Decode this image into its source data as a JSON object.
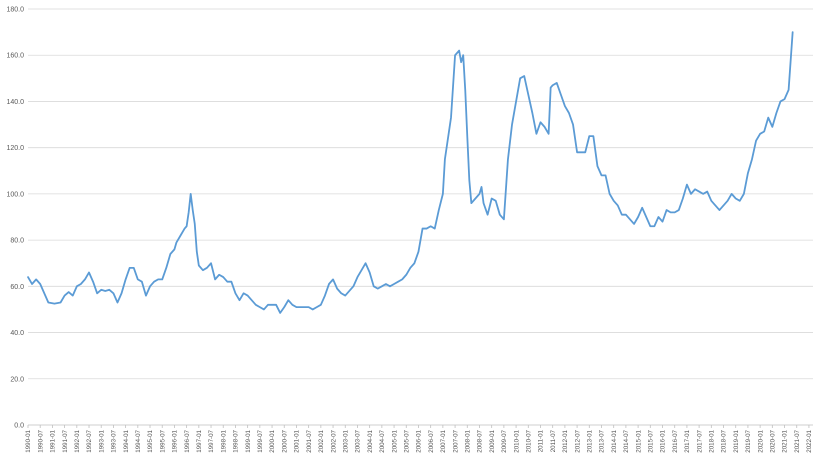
{
  "chart_data": {
    "type": "line",
    "title": "",
    "xlabel": "",
    "ylabel": "",
    "ylim": [
      0,
      180
    ],
    "ytick_step": 20,
    "ytick_labels": [
      "0.0",
      "20.0",
      "40.0",
      "60.0",
      "80.0",
      "100.0",
      "120.0",
      "140.0",
      "160.0",
      "180.0"
    ],
    "grid": true,
    "legend": "none",
    "line_color": "#5b9bd5",
    "x_start": "1990-01",
    "x_end": "2022-03",
    "xtick_labels": [
      "1990-01",
      "1990-07",
      "1991-01",
      "1991-07",
      "1992-01",
      "1992-07",
      "1993-01",
      "1993-07",
      "1994-01",
      "1994-07",
      "1995-01",
      "1995-07",
      "1996-01",
      "1996-07",
      "1997-01",
      "1997-07",
      "1998-01",
      "1998-07",
      "1999-01",
      "1999-07",
      "2000-01",
      "2000-07",
      "2001-01",
      "2001-07",
      "2002-01",
      "2002-07",
      "2003-01",
      "2003-07",
      "2004-01",
      "2004-07",
      "2005-01",
      "2005-07",
      "2006-01",
      "2006-07",
      "2007-01",
      "2007-07",
      "2008-01",
      "2008-07",
      "2009-01",
      "2009-07",
      "2010-01",
      "2010-07",
      "2011-01",
      "2011-07",
      "2012-01",
      "2012-07",
      "2013-01",
      "2013-07",
      "2014-01",
      "2014-07",
      "2015-01",
      "2015-07",
      "2016-01",
      "2016-07",
      "2017-01",
      "2017-07",
      "2018-01",
      "2018-07",
      "2019-01",
      "2019-07",
      "2020-01",
      "2020-07",
      "2021-01",
      "2021-07",
      "2022-01"
    ],
    "series": [
      {
        "points": [
          [
            "1990-01",
            64
          ],
          [
            "1990-03",
            61
          ],
          [
            "1990-05",
            63
          ],
          [
            "1990-07",
            61
          ],
          [
            "1990-09",
            57
          ],
          [
            "1990-11",
            53
          ],
          [
            "1991-02",
            52.5
          ],
          [
            "1991-05",
            53
          ],
          [
            "1991-07",
            56
          ],
          [
            "1991-09",
            57.5
          ],
          [
            "1991-11",
            56
          ],
          [
            "1992-01",
            60
          ],
          [
            "1992-03",
            61
          ],
          [
            "1992-05",
            63
          ],
          [
            "1992-07",
            66
          ],
          [
            "1992-09",
            62
          ],
          [
            "1992-11",
            57
          ],
          [
            "1993-01",
            58.5
          ],
          [
            "1993-03",
            58
          ],
          [
            "1993-05",
            58.5
          ],
          [
            "1993-07",
            57
          ],
          [
            "1993-09",
            53
          ],
          [
            "1993-11",
            57
          ],
          [
            "1994-01",
            63
          ],
          [
            "1994-03",
            68
          ],
          [
            "1994-05",
            68
          ],
          [
            "1994-07",
            63
          ],
          [
            "1994-09",
            62
          ],
          [
            "1994-11",
            56
          ],
          [
            "1995-01",
            60
          ],
          [
            "1995-03",
            62
          ],
          [
            "1995-05",
            63
          ],
          [
            "1995-07",
            63
          ],
          [
            "1995-09",
            68
          ],
          [
            "1995-11",
            74
          ],
          [
            "1996-01",
            76
          ],
          [
            "1996-02",
            79
          ],
          [
            "1996-04",
            82
          ],
          [
            "1996-06",
            85
          ],
          [
            "1996-07",
            86
          ],
          [
            "1996-08",
            92
          ],
          [
            "1996-09",
            100
          ],
          [
            "1996-10",
            93
          ],
          [
            "1996-11",
            87
          ],
          [
            "1996-12",
            75
          ],
          [
            "1997-01",
            69
          ],
          [
            "1997-03",
            67
          ],
          [
            "1997-05",
            68
          ],
          [
            "1997-07",
            70
          ],
          [
            "1997-09",
            63
          ],
          [
            "1997-11",
            65
          ],
          [
            "1998-01",
            64
          ],
          [
            "1998-03",
            62
          ],
          [
            "1998-05",
            62
          ],
          [
            "1998-07",
            57
          ],
          [
            "1998-09",
            54
          ],
          [
            "1998-11",
            57
          ],
          [
            "1999-01",
            56
          ],
          [
            "1999-03",
            54
          ],
          [
            "1999-05",
            52
          ],
          [
            "1999-07",
            51
          ],
          [
            "1999-09",
            50
          ],
          [
            "1999-11",
            52
          ],
          [
            "2000-01",
            52
          ],
          [
            "2000-03",
            52
          ],
          [
            "2000-05",
            48.5
          ],
          [
            "2000-07",
            51
          ],
          [
            "2000-09",
            54
          ],
          [
            "2000-11",
            52
          ],
          [
            "2001-01",
            51
          ],
          [
            "2001-03",
            51
          ],
          [
            "2001-05",
            51
          ],
          [
            "2001-07",
            51
          ],
          [
            "2001-09",
            50
          ],
          [
            "2001-11",
            51
          ],
          [
            "2002-01",
            52
          ],
          [
            "2002-03",
            56
          ],
          [
            "2002-05",
            61
          ],
          [
            "2002-07",
            63
          ],
          [
            "2002-09",
            59
          ],
          [
            "2002-11",
            57
          ],
          [
            "2003-01",
            56
          ],
          [
            "2003-03",
            58
          ],
          [
            "2003-05",
            60
          ],
          [
            "2003-07",
            64
          ],
          [
            "2003-09",
            67
          ],
          [
            "2003-11",
            70
          ],
          [
            "2004-01",
            66
          ],
          [
            "2004-03",
            60
          ],
          [
            "2004-05",
            59
          ],
          [
            "2004-07",
            60
          ],
          [
            "2004-09",
            61
          ],
          [
            "2004-11",
            60
          ],
          [
            "2005-01",
            61
          ],
          [
            "2005-03",
            62
          ],
          [
            "2005-05",
            63
          ],
          [
            "2005-07",
            65
          ],
          [
            "2005-09",
            68
          ],
          [
            "2005-11",
            70
          ],
          [
            "2006-01",
            75
          ],
          [
            "2006-03",
            85
          ],
          [
            "2006-05",
            85
          ],
          [
            "2006-07",
            86
          ],
          [
            "2006-09",
            85
          ],
          [
            "2006-11",
            93
          ],
          [
            "2007-01",
            100
          ],
          [
            "2007-02",
            115
          ],
          [
            "2007-03",
            121
          ],
          [
            "2007-05",
            133
          ],
          [
            "2007-07",
            160
          ],
          [
            "2007-09",
            162
          ],
          [
            "2007-10",
            157
          ],
          [
            "2007-11",
            160
          ],
          [
            "2007-12",
            145
          ],
          [
            "2008-01",
            125
          ],
          [
            "2008-02",
            106
          ],
          [
            "2008-03",
            96
          ],
          [
            "2008-05",
            98
          ],
          [
            "2008-07",
            100
          ],
          [
            "2008-08",
            103
          ],
          [
            "2008-09",
            96
          ],
          [
            "2008-11",
            91
          ],
          [
            "2009-01",
            98
          ],
          [
            "2009-03",
            97
          ],
          [
            "2009-05",
            91
          ],
          [
            "2009-07",
            89
          ],
          [
            "2009-09",
            115
          ],
          [
            "2009-11",
            130
          ],
          [
            "2010-01",
            140
          ],
          [
            "2010-03",
            150
          ],
          [
            "2010-05",
            151
          ],
          [
            "2010-07",
            143
          ],
          [
            "2010-09",
            135
          ],
          [
            "2010-11",
            126
          ],
          [
            "2011-01",
            131
          ],
          [
            "2011-03",
            129
          ],
          [
            "2011-05",
            126
          ],
          [
            "2011-06",
            146
          ],
          [
            "2011-07",
            147
          ],
          [
            "2011-09",
            148
          ],
          [
            "2011-11",
            143
          ],
          [
            "2012-01",
            138
          ],
          [
            "2012-03",
            135
          ],
          [
            "2012-05",
            130
          ],
          [
            "2012-07",
            118
          ],
          [
            "2012-09",
            118
          ],
          [
            "2012-11",
            118
          ],
          [
            "2013-01",
            125
          ],
          [
            "2013-03",
            125
          ],
          [
            "2013-05",
            112
          ],
          [
            "2013-07",
            108
          ],
          [
            "2013-09",
            108
          ],
          [
            "2013-11",
            100
          ],
          [
            "2014-01",
            97
          ],
          [
            "2014-03",
            95
          ],
          [
            "2014-05",
            91
          ],
          [
            "2014-07",
            91
          ],
          [
            "2014-09",
            89
          ],
          [
            "2014-11",
            87
          ],
          [
            "2015-01",
            90
          ],
          [
            "2015-03",
            94
          ],
          [
            "2015-05",
            90
          ],
          [
            "2015-07",
            86
          ],
          [
            "2015-09",
            86
          ],
          [
            "2015-11",
            90
          ],
          [
            "2016-01",
            88
          ],
          [
            "2016-03",
            93
          ],
          [
            "2016-05",
            92
          ],
          [
            "2016-07",
            92
          ],
          [
            "2016-09",
            93
          ],
          [
            "2016-11",
            98
          ],
          [
            "2017-01",
            104
          ],
          [
            "2017-03",
            100
          ],
          [
            "2017-05",
            102
          ],
          [
            "2017-07",
            101
          ],
          [
            "2017-09",
            100
          ],
          [
            "2017-11",
            101
          ],
          [
            "2018-01",
            97
          ],
          [
            "2018-03",
            95
          ],
          [
            "2018-05",
            93
          ],
          [
            "2018-07",
            95
          ],
          [
            "2018-09",
            97
          ],
          [
            "2018-11",
            100
          ],
          [
            "2019-01",
            98
          ],
          [
            "2019-03",
            97
          ],
          [
            "2019-05",
            100
          ],
          [
            "2019-07",
            109
          ],
          [
            "2019-09",
            115
          ],
          [
            "2019-11",
            123
          ],
          [
            "2020-01",
            126
          ],
          [
            "2020-03",
            127
          ],
          [
            "2020-05",
            133
          ],
          [
            "2020-07",
            129
          ],
          [
            "2020-09",
            135
          ],
          [
            "2020-11",
            140
          ],
          [
            "2021-01",
            141
          ],
          [
            "2021-03",
            145
          ],
          [
            "2021-05",
            170
          ]
        ]
      }
    ]
  }
}
